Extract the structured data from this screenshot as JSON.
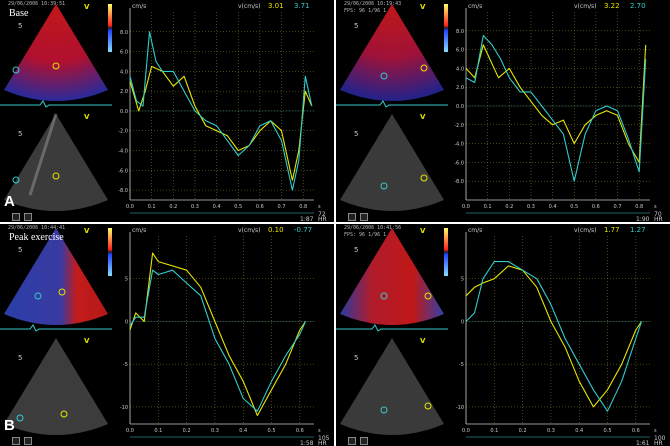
{
  "colors": {
    "yellow_trace": "#e6e600",
    "green_trace": "#33cccc",
    "grid": "#8a8a2a",
    "axis": "#c9c9c9"
  },
  "chart_data": [
    {
      "type": "line",
      "panel_letter": "A",
      "condition": "Base",
      "timestamp": "29/06/2006 10:39:51",
      "ylabel": "v(cm/s)",
      "yunit": "cm/s",
      "xunit": "s",
      "readout_yellow": "3.01",
      "readout_green": "3.71",
      "hr_value": "72",
      "hr_time": "1:87",
      "hr_label": "HR",
      "xlim": [
        0,
        0.85
      ],
      "ylim": [
        -9,
        10
      ],
      "x_ticks": [
        0,
        0.1,
        0.2,
        0.3,
        0.4,
        0.5,
        0.6,
        0.7,
        0.8
      ],
      "x_tick_labels": [
        "0.0",
        "0.1",
        "0.2",
        "0.3",
        "0.4",
        "0.5",
        "0.6",
        "0.7",
        "0.8"
      ],
      "y_ticks": [
        8,
        6,
        4,
        2,
        0,
        -2,
        -4,
        -6,
        -8
      ],
      "y_tick_labels": [
        "8.0",
        "6.0",
        "4.0",
        "2.0",
        "0.0",
        "-2.0",
        "-4.0",
        "-6.0",
        "-8.0"
      ],
      "series": [
        {
          "color": "yellow",
          "x": [
            0,
            0.04,
            0.07,
            0.1,
            0.15,
            0.2,
            0.25,
            0.3,
            0.35,
            0.4,
            0.45,
            0.5,
            0.55,
            0.6,
            0.65,
            0.7,
            0.75,
            0.78,
            0.81,
            0.84
          ],
          "y": [
            3,
            0,
            2,
            4.5,
            4,
            2.5,
            3.5,
            0.5,
            -1.5,
            -2,
            -2.5,
            -4,
            -3.5,
            -2,
            -1,
            -2,
            -7,
            -4,
            2,
            0.5
          ]
        },
        {
          "color": "green",
          "x": [
            0,
            0.03,
            0.06,
            0.09,
            0.12,
            0.15,
            0.2,
            0.25,
            0.3,
            0.35,
            0.4,
            0.45,
            0.5,
            0.55,
            0.6,
            0.65,
            0.7,
            0.75,
            0.78,
            0.81,
            0.84
          ],
          "y": [
            3.5,
            1,
            0.5,
            8,
            5,
            4,
            4,
            2,
            0,
            -1,
            -1.5,
            -3,
            -4.5,
            -3.5,
            -1.5,
            -1,
            -3,
            -8,
            -5,
            3.5,
            0.5
          ]
        }
      ]
    },
    {
      "type": "line",
      "panel_letter": "",
      "condition": "",
      "timestamp": "29/06/2006 10:19:43",
      "timestamp2": "FPS: 96 1/96 1",
      "ylabel": "v(cm/s)",
      "yunit": "cm/s",
      "xunit": "s",
      "readout_yellow": "3.22",
      "readout_green": "2.70",
      "hr_value": "70",
      "hr_time": "1:90",
      "hr_label": "HR",
      "xlim": [
        0,
        0.85
      ],
      "ylim": [
        -10,
        10
      ],
      "x_ticks": [
        0,
        0.1,
        0.2,
        0.3,
        0.4,
        0.5,
        0.6,
        0.7,
        0.8
      ],
      "x_tick_labels": [
        "0.0",
        "0.1",
        "0.2",
        "0.3",
        "0.4",
        "0.5",
        "0.6",
        "0.7",
        "0.8"
      ],
      "y_ticks": [
        8,
        6,
        4,
        2,
        0,
        -2,
        -4,
        -6,
        -8
      ],
      "y_tick_labels": [
        "8.0",
        "6.0",
        "4.0",
        "2.0",
        "0.0",
        "-2.0",
        "-4.0",
        "-6.0",
        "-8.0"
      ],
      "series": [
        {
          "color": "yellow",
          "x": [
            0,
            0.04,
            0.08,
            0.11,
            0.15,
            0.2,
            0.25,
            0.3,
            0.35,
            0.4,
            0.45,
            0.5,
            0.55,
            0.6,
            0.65,
            0.7,
            0.75,
            0.8,
            0.83
          ],
          "y": [
            4,
            3,
            6.5,
            5,
            3,
            4,
            2,
            0.5,
            -1,
            -2,
            -1.5,
            -4,
            -2,
            -1,
            -0.5,
            -1,
            -4,
            -6,
            6.5
          ]
        },
        {
          "color": "green",
          "x": [
            0,
            0.04,
            0.08,
            0.12,
            0.16,
            0.2,
            0.25,
            0.3,
            0.35,
            0.4,
            0.45,
            0.5,
            0.55,
            0.6,
            0.65,
            0.7,
            0.75,
            0.8,
            0.83
          ],
          "y": [
            3,
            2.5,
            7.5,
            6.5,
            5,
            3,
            1.5,
            1.5,
            0,
            -1.5,
            -3,
            -8,
            -3,
            -0.5,
            0,
            -0.5,
            -3.5,
            -7,
            5
          ]
        }
      ]
    },
    {
      "type": "line",
      "panel_letter": "B",
      "condition": "Peak exercise",
      "timestamp": "29/06/2006 10:44:41",
      "ylabel": "v(cm/s)",
      "yunit": "cm/s",
      "xunit": "s",
      "readout_yellow": "0.10",
      "readout_green": "-0.77",
      "hr_value": "105",
      "hr_time": "1:58",
      "hr_label": "HR",
      "xlim": [
        0,
        0.65
      ],
      "ylim": [
        -12,
        10
      ],
      "x_ticks": [
        0,
        0.1,
        0.2,
        0.3,
        0.4,
        0.5,
        0.6
      ],
      "x_tick_labels": [
        "0.0",
        "0.1",
        "0.2",
        "0.3",
        "0.4",
        "0.5",
        "0.6"
      ],
      "y_ticks": [
        5,
        0,
        -5,
        -10
      ],
      "y_tick_labels": [
        "5",
        "0",
        "-5",
        "-10"
      ],
      "series": [
        {
          "color": "yellow",
          "x": [
            0,
            0.02,
            0.05,
            0.08,
            0.1,
            0.15,
            0.2,
            0.25,
            0.3,
            0.35,
            0.4,
            0.45,
            0.5,
            0.55,
            0.6,
            0.62
          ],
          "y": [
            -1,
            1,
            0,
            8,
            7,
            6.5,
            6,
            4,
            0,
            -4,
            -7,
            -11,
            -8,
            -5,
            -1,
            0
          ]
        },
        {
          "color": "green",
          "x": [
            0,
            0.02,
            0.05,
            0.08,
            0.1,
            0.15,
            0.2,
            0.25,
            0.3,
            0.35,
            0.4,
            0.45,
            0.5,
            0.55,
            0.6,
            0.62
          ],
          "y": [
            -0.5,
            0.5,
            0.5,
            6,
            5.5,
            6,
            4.5,
            3,
            -2,
            -5,
            -9,
            -10.5,
            -7,
            -4,
            -1.5,
            0
          ]
        }
      ]
    },
    {
      "type": "line",
      "panel_letter": "",
      "condition": "",
      "timestamp": "29/06/2006 10:41:56",
      "timestamp2": "FPS: 96 1/96 1",
      "ylabel": "v(cm/s)",
      "yunit": "cm/s",
      "xunit": "s",
      "readout_yellow": "1.77",
      "readout_green": "1.27",
      "hr_value": "100",
      "hr_time": "1:61",
      "hr_label": "HR",
      "xlim": [
        0,
        0.65
      ],
      "ylim": [
        -12,
        10
      ],
      "x_ticks": [
        0,
        0.1,
        0.2,
        0.3,
        0.4,
        0.5,
        0.6
      ],
      "x_tick_labels": [
        "0.0",
        "0.1",
        "0.2",
        "0.3",
        "0.4",
        "0.5",
        "0.6"
      ],
      "y_ticks": [
        5,
        0,
        -5,
        -10
      ],
      "y_tick_labels": [
        "5",
        "0",
        "-5",
        "-10"
      ],
      "series": [
        {
          "color": "yellow",
          "x": [
            0,
            0.03,
            0.06,
            0.1,
            0.15,
            0.2,
            0.25,
            0.3,
            0.35,
            0.4,
            0.45,
            0.5,
            0.55,
            0.6,
            0.62
          ],
          "y": [
            3,
            4,
            4.5,
            5,
            6.5,
            6,
            4,
            0,
            -3,
            -7,
            -10,
            -8,
            -5,
            -1,
            0
          ]
        },
        {
          "color": "green",
          "x": [
            0,
            0.03,
            0.06,
            0.1,
            0.15,
            0.2,
            0.25,
            0.3,
            0.35,
            0.4,
            0.45,
            0.5,
            0.55,
            0.6,
            0.62
          ],
          "y": [
            0,
            1,
            5,
            7,
            7,
            6,
            5,
            2,
            -2,
            -5,
            -8,
            -10.5,
            -7,
            -2,
            0
          ]
        }
      ]
    }
  ]
}
